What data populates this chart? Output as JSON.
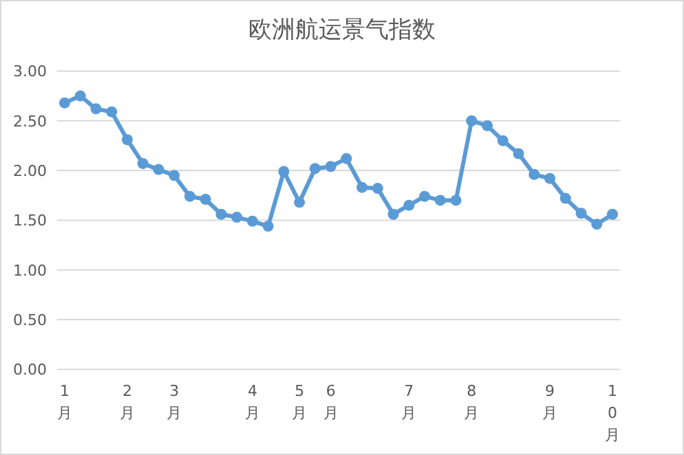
{
  "chart_data": {
    "type": "line",
    "title": "欧洲航运景气指数",
    "categories": [
      "1月",
      null,
      null,
      null,
      "2月",
      null,
      null,
      "3月",
      null,
      null,
      null,
      null,
      "4月",
      null,
      null,
      "5月",
      null,
      "6月",
      null,
      null,
      null,
      null,
      "7月",
      null,
      null,
      null,
      "8月",
      null,
      null,
      null,
      null,
      "9月",
      null,
      null,
      null,
      "10月"
    ],
    "values": [
      2.68,
      2.75,
      2.62,
      2.59,
      2.31,
      2.07,
      2.01,
      1.95,
      1.74,
      1.71,
      1.56,
      1.53,
      1.49,
      1.44,
      1.99,
      1.68,
      2.02,
      2.04,
      2.12,
      1.83,
      1.82,
      1.56,
      1.65,
      1.74,
      1.7,
      1.7,
      2.5,
      2.45,
      2.3,
      2.17,
      1.96,
      1.92,
      1.72,
      1.57,
      1.46,
      1.56
    ],
    "color": "#5b9bd5",
    "marker": "circle",
    "line_style": "solid",
    "grid": "y",
    "ylim": [
      0,
      3
    ],
    "yticks": [
      {
        "value": 0,
        "label": "0.00"
      },
      {
        "value": 0.5,
        "label": "0.50"
      },
      {
        "value": 1,
        "label": "1.00"
      },
      {
        "value": 1.5,
        "label": "1.50"
      },
      {
        "value": 2,
        "label": "2.00"
      },
      {
        "value": 2.5,
        "label": "2.50"
      },
      {
        "value": 3,
        "label": "3.00"
      }
    ]
  }
}
